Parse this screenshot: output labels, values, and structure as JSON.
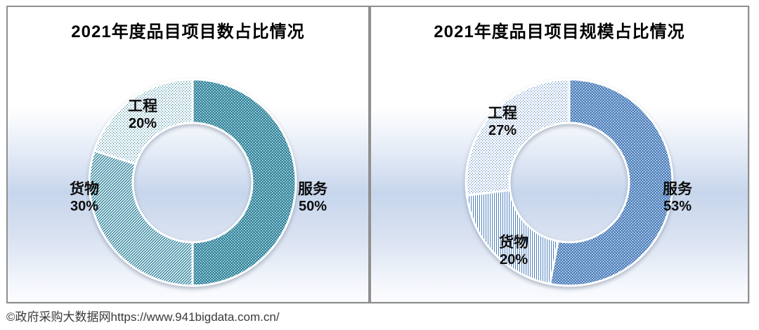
{
  "page": {
    "caption": "©政府采购大数据网https://www.941bigdata.com.cn/"
  },
  "chart_data": [
    {
      "type": "pie",
      "subtype": "donut",
      "title": "2021年度品目项目数占比情况",
      "categories": [
        "服务",
        "货物",
        "工程"
      ],
      "values": [
        50,
        30,
        20
      ],
      "unit": "%",
      "legend": "none",
      "label_style": "category-name-and-percent-outside",
      "base_color": "#31859C",
      "slices": [
        {
          "name": "服务",
          "value": 50,
          "pct": "50%",
          "pattern": "checker-dense",
          "color": "#31859C"
        },
        {
          "name": "货物",
          "value": 30,
          "pct": "30%",
          "pattern": "diagonal",
          "color": "#31859C"
        },
        {
          "name": "工程",
          "value": 20,
          "pct": "20%",
          "pattern": "dots",
          "color": "#31859C"
        }
      ]
    },
    {
      "type": "pie",
      "subtype": "donut",
      "title": "2021年度品目项目规模占比情况",
      "categories": [
        "服务",
        "货物",
        "工程"
      ],
      "values": [
        53,
        20,
        27
      ],
      "unit": "%",
      "legend": "none",
      "label_style": "category-name-and-percent-outside",
      "base_color": "#4F81BD",
      "slices": [
        {
          "name": "服务",
          "value": 53,
          "pct": "53%",
          "pattern": "checker-dense",
          "color": "#4F81BD"
        },
        {
          "name": "货物",
          "value": 20,
          "pct": "20%",
          "pattern": "vlines",
          "color": "#4F81BD"
        },
        {
          "name": "工程",
          "value": 27,
          "pct": "27%",
          "pattern": "dots",
          "color": "#4F81BD"
        }
      ]
    }
  ]
}
